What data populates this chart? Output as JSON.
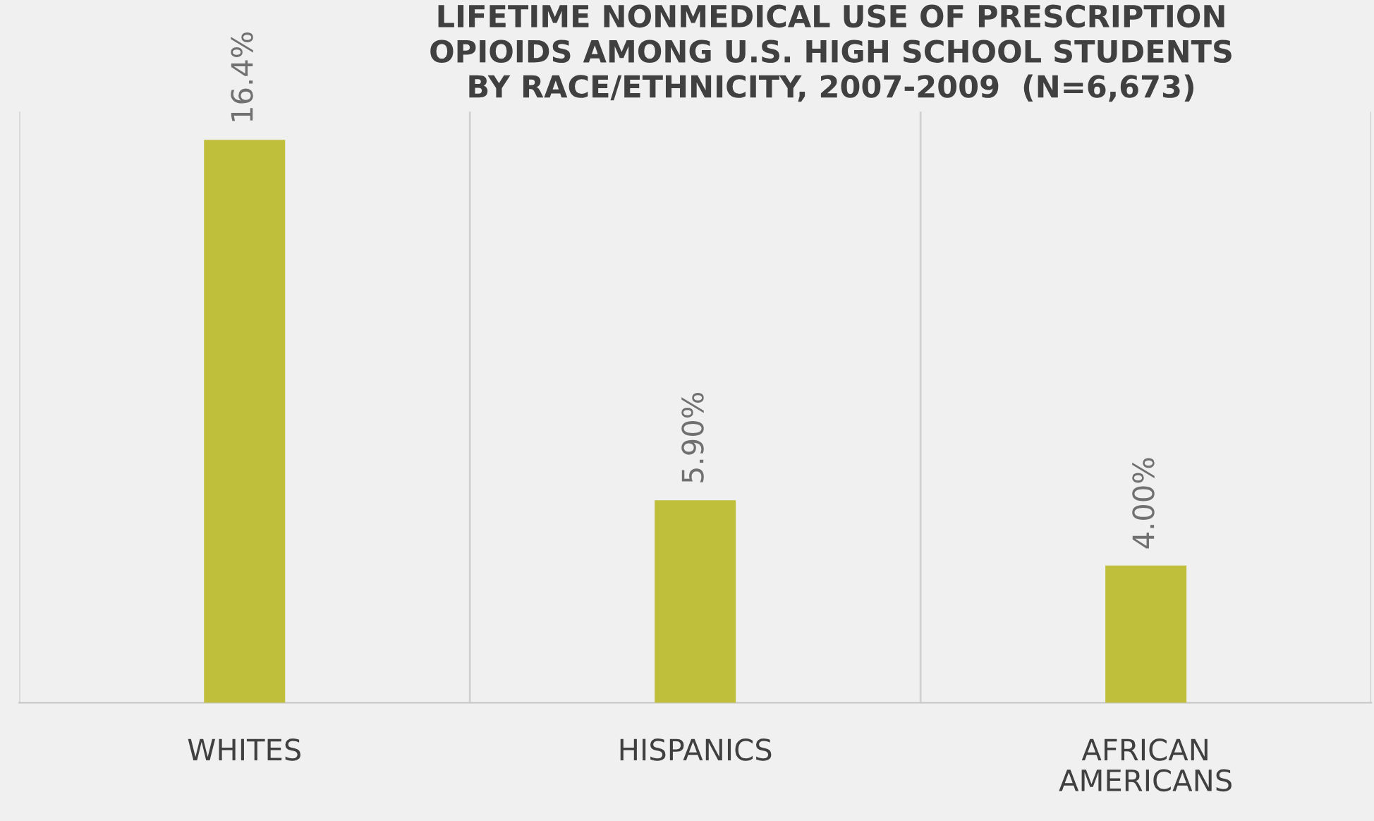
{
  "chart_data": {
    "type": "bar",
    "title": "LIFETIME NONMEDICAL USE OF PRESCRIPTION\nOPIOIDS AMONG U.S. HIGH SCHOOL STUDENTS\nBY RACE/ETHNICITY, 2007-2009  (N=6,673)",
    "categories": [
      "WHITES",
      "HISPANICS",
      "AFRICAN\nAMERICANS"
    ],
    "values": [
      16.4,
      5.9,
      4.0
    ],
    "value_labels": [
      "16.4%",
      "5.90%",
      "4.00%"
    ],
    "color": "#c0bf3c",
    "grid": "x"
  }
}
